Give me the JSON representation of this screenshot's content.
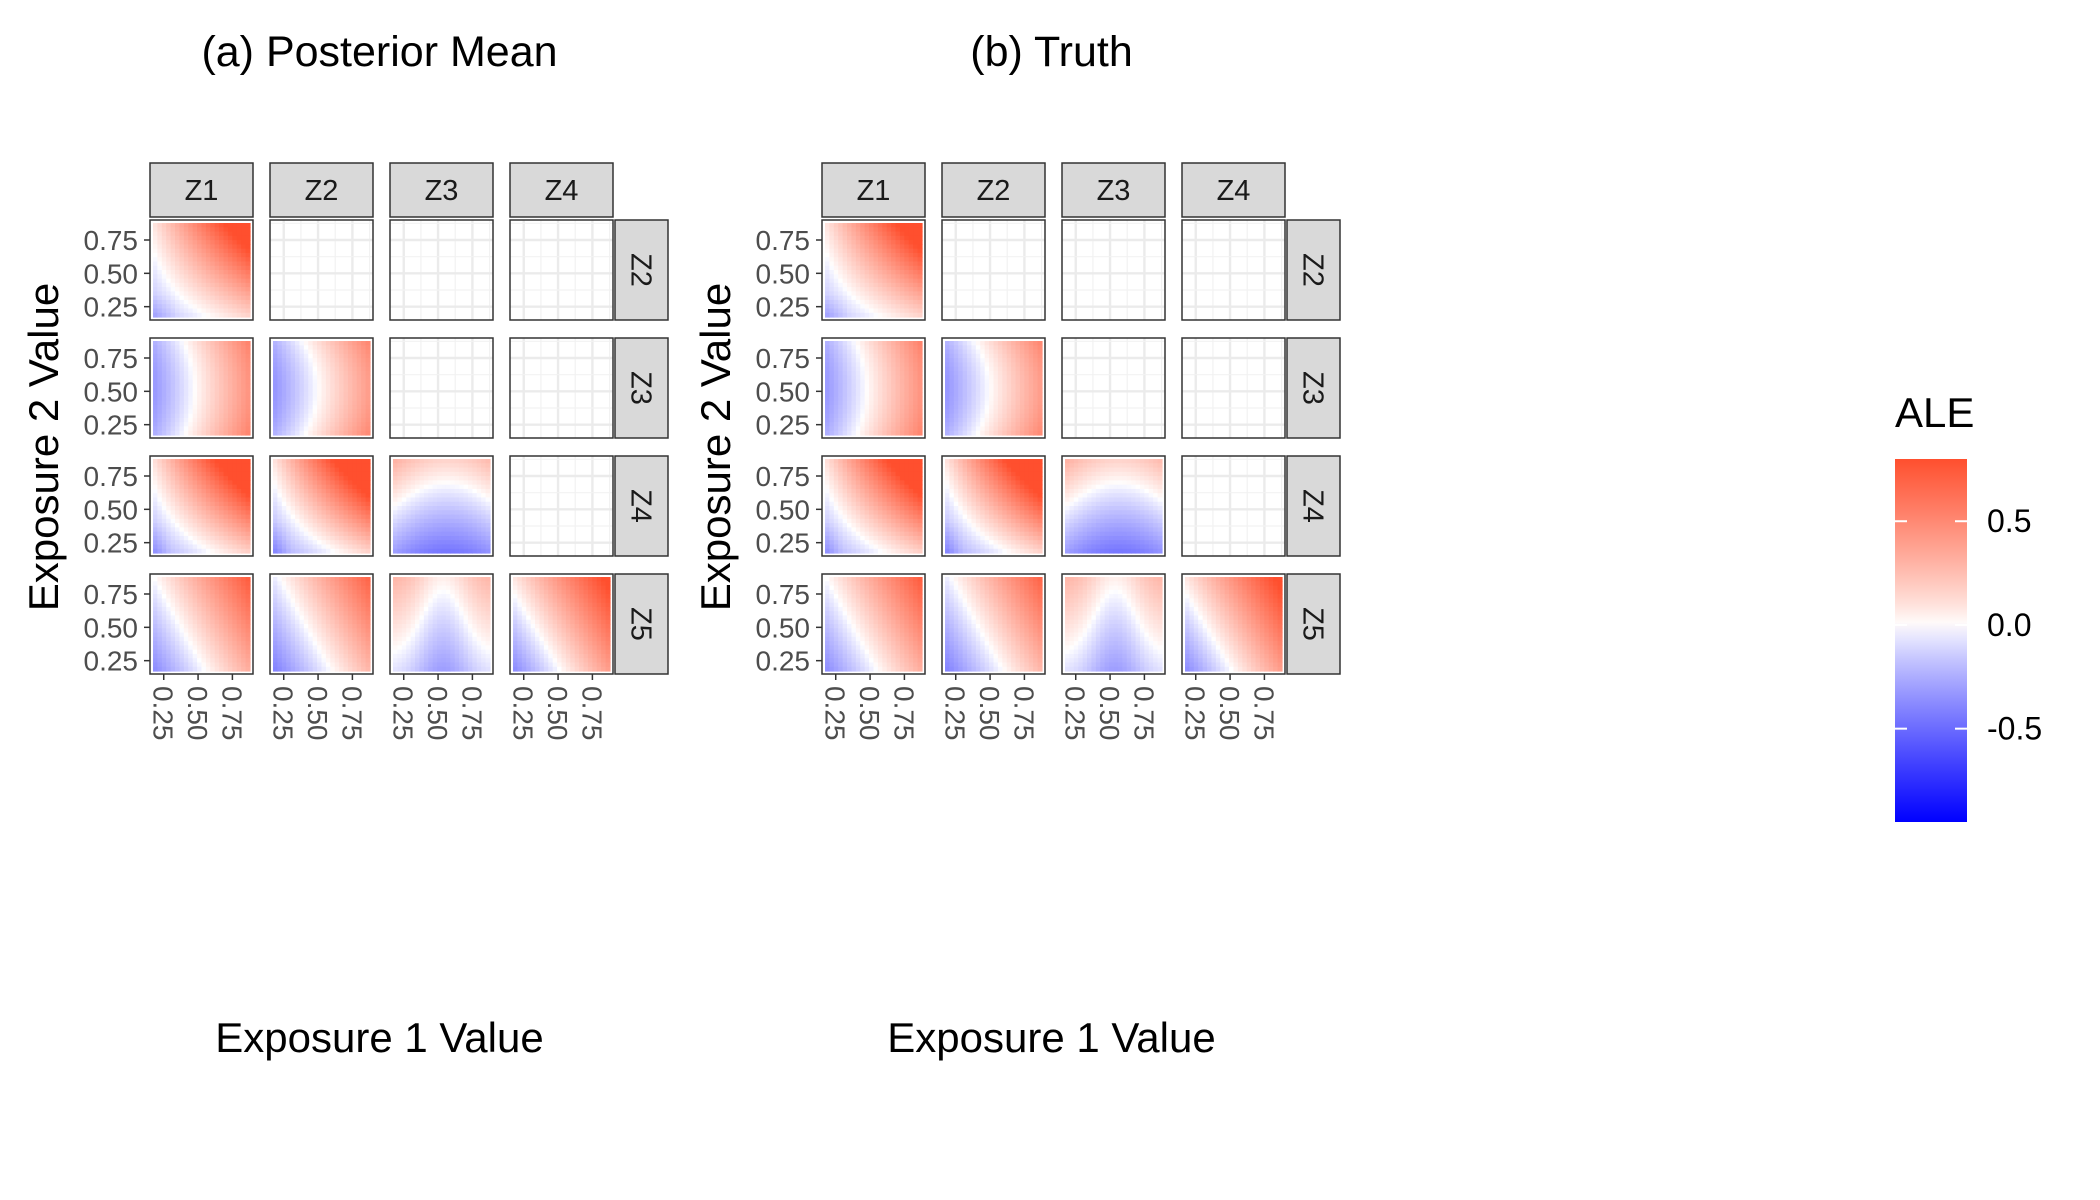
{
  "chart_data": {
    "type": "heatmap",
    "legend": {
      "title": "ALE",
      "position": "right",
      "range": [
        -0.95,
        0.8
      ],
      "ticks": [
        0.5,
        0.0,
        -0.5
      ],
      "tick_labels": [
        "0.5",
        "0.0",
        "-0.5"
      ],
      "low_color": "#0000ff",
      "mid_color": "#ffffff",
      "high_color": "#ff4f2e"
    },
    "panels": [
      {
        "title": "(a) Posterior Mean",
        "xlabel": "Exposure 1 Value",
        "ylabel": "Exposure 2 Value",
        "col_strips": [
          "Z1",
          "Z2",
          "Z3",
          "Z4"
        ],
        "row_strips": [
          "Z2",
          "Z3",
          "Z4",
          "Z5"
        ],
        "x_tick_labels": [
          "0.25",
          "0.50",
          "0.75"
        ],
        "y_tick_labels": [
          "0.75",
          "0.50",
          "0.25"
        ],
        "x_range": [
          0.15,
          0.9
        ],
        "y_range": [
          0.15,
          0.9
        ],
        "cells": [
          [
            "Z1xZ2",
            "empty",
            "empty",
            "empty"
          ],
          [
            "Z1xZ3",
            "Z2xZ3",
            "empty",
            "empty"
          ],
          [
            "Z1xZ4",
            "Z2xZ4",
            "Z3xZ4",
            "empty"
          ],
          [
            "Z1xZ5",
            "Z2xZ5",
            "Z3xZ5",
            "Z4xZ5"
          ]
        ]
      },
      {
        "title": "(b) Truth",
        "xlabel": "Exposure 1 Value",
        "ylabel": "Exposure 2 Value",
        "col_strips": [
          "Z1",
          "Z2",
          "Z3",
          "Z4"
        ],
        "row_strips": [
          "Z2",
          "Z3",
          "Z4",
          "Z5"
        ],
        "x_tick_labels": [
          "0.25",
          "0.50",
          "0.75"
        ],
        "y_tick_labels": [
          "0.75",
          "0.50",
          "0.25"
        ],
        "x_range": [
          0.15,
          0.9
        ],
        "y_range": [
          0.15,
          0.9
        ],
        "cells": [
          [
            "Z1xZ2",
            "empty",
            "empty",
            "empty"
          ],
          [
            "Z1xZ3",
            "Z2xZ3",
            "empty",
            "empty"
          ],
          [
            "Z1xZ4",
            "Z2xZ4",
            "Z3xZ4",
            "empty"
          ],
          [
            "Z1xZ5",
            "Z2xZ5",
            "Z3xZ5",
            "Z4xZ5"
          ]
        ]
      }
    ]
  }
}
